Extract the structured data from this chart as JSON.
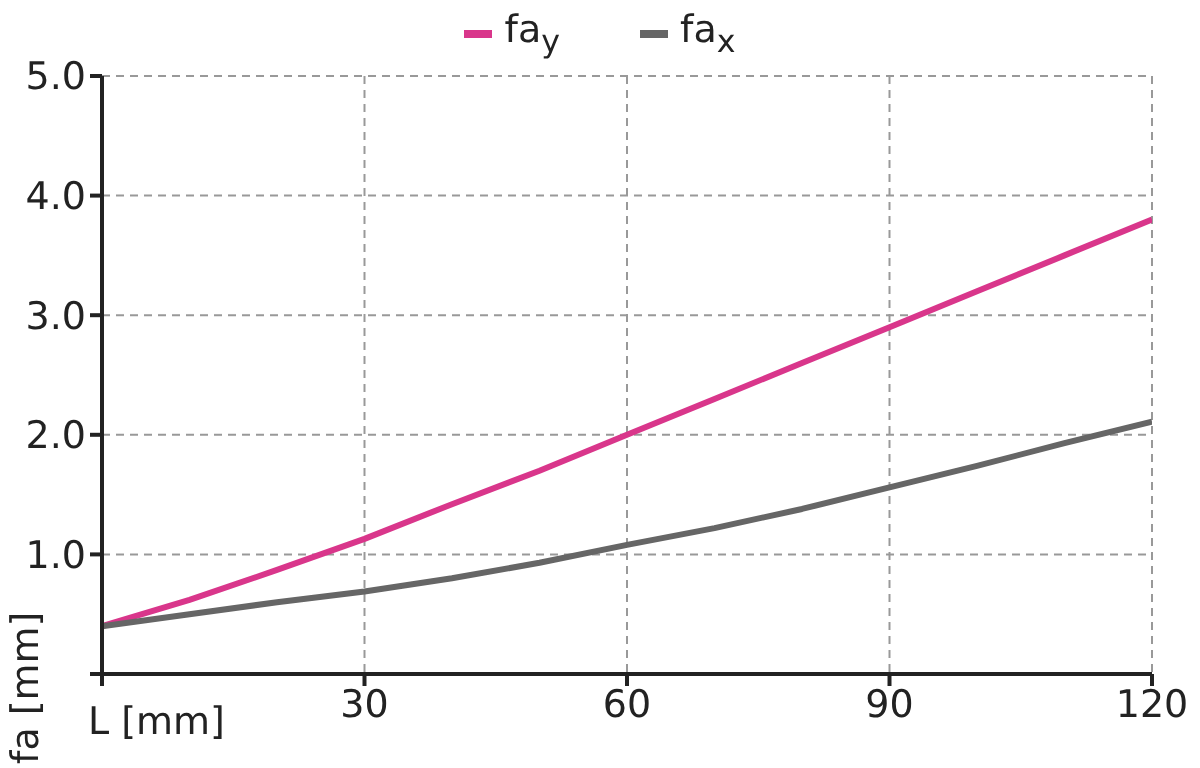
{
  "chart_data": {
    "type": "line",
    "xlabel": "L [mm]",
    "ylabel": "fa [mm]",
    "x": [
      0,
      10,
      20,
      30,
      40,
      50,
      60,
      70,
      80,
      90,
      100,
      110,
      120
    ],
    "series": [
      {
        "name": "fa$_{y}$",
        "color": "#d9368b",
        "values": [
          0.4,
          0.62,
          0.87,
          1.13,
          1.42,
          1.7,
          2.0,
          2.3,
          2.6,
          2.9,
          3.2,
          3.5,
          3.8
        ]
      },
      {
        "name": "fa$_{x}$",
        "color": "#666666",
        "values": [
          0.4,
          0.5,
          0.6,
          0.69,
          0.8,
          0.93,
          1.08,
          1.22,
          1.38,
          1.56,
          1.74,
          1.93,
          2.11
        ]
      }
    ],
    "xlim": [
      0,
      120
    ],
    "xticks": [
      {
        "value": 0,
        "label": null
      },
      30,
      60,
      90,
      120
    ],
    "ylim": [
      0,
      5
    ],
    "yticks": [
      {
        "value": 0,
        "label": null
      },
      {
        "value": 1,
        "label": "1.0"
      },
      {
        "value": 2,
        "label": "2.0"
      },
      {
        "value": 3,
        "label": "3.0"
      },
      {
        "value": 4,
        "label": "4.0"
      },
      {
        "value": 5,
        "label": "5.0"
      }
    ],
    "grid": true,
    "legend": "top",
    "marker": "none",
    "line_style": "solid"
  }
}
